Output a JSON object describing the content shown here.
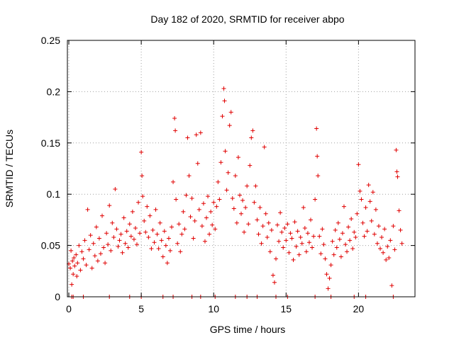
{
  "chart_data": {
    "type": "scatter",
    "title": "Day 182 of 2020, SRMTID for receiver abpo",
    "xlabel": "GPS time / hours",
    "ylabel": "SRMTID / TECUs",
    "xlim": [
      -0.1,
      23.9
    ],
    "ylim": [
      0,
      0.25
    ],
    "x_ticks": [
      0,
      5,
      10,
      15,
      20
    ],
    "x_tick_labels": [
      "0",
      "5",
      "10",
      "15",
      "20"
    ],
    "y_ticks": [
      0,
      0.05,
      0.1,
      0.15,
      0.2,
      0.25
    ],
    "y_tick_labels": [
      "0",
      "0.05",
      "0.1",
      "0.15",
      "0.2",
      "0.25"
    ],
    "grid": true,
    "marker": "+",
    "series": [
      {
        "name": "SRMTID",
        "color": "#e00000",
        "points": [
          [
            0.0,
            0.032
          ],
          [
            0.1,
            0.028
          ],
          [
            0.15,
            0.045
          ],
          [
            0.2,
            0.012
          ],
          [
            0.25,
            0.035
          ],
          [
            0.3,
            0.022
          ],
          [
            0.35,
            0.038
          ],
          [
            0.4,
            0.03
          ],
          [
            0.5,
            0.041
          ],
          [
            0.55,
            0.02
          ],
          [
            0.6,
            0.033
          ],
          [
            0.7,
            0.05
          ],
          [
            0.8,
            0.026
          ],
          [
            0.9,
            0.044
          ],
          [
            1.0,
            0.037
          ],
          [
            1.1,
            0.055
          ],
          [
            1.2,
            0.031
          ],
          [
            1.3,
            0.085
          ],
          [
            1.4,
            0.046
          ],
          [
            1.5,
            0.06
          ],
          [
            1.6,
            0.028
          ],
          [
            1.7,
            0.052
          ],
          [
            1.8,
            0.04
          ],
          [
            1.9,
            0.068
          ],
          [
            2.0,
            0.035
          ],
          [
            2.1,
            0.057
          ],
          [
            2.2,
            0.042
          ],
          [
            2.3,
            0.079
          ],
          [
            2.4,
            0.048
          ],
          [
            2.5,
            0.033
          ],
          [
            2.6,
            0.062
          ],
          [
            2.7,
            0.051
          ],
          [
            2.8,
            0.089
          ],
          [
            2.9,
            0.045
          ],
          [
            3.0,
            0.072
          ],
          [
            3.1,
            0.058
          ],
          [
            3.2,
            0.105
          ],
          [
            3.3,
            0.066
          ],
          [
            3.4,
            0.049
          ],
          [
            3.5,
            0.055
          ],
          [
            3.6,
            0.061
          ],
          [
            3.7,
            0.043
          ],
          [
            3.8,
            0.077
          ],
          [
            3.9,
            0.052
          ],
          [
            4.0,
            0.064
          ],
          [
            4.1,
            0.048
          ],
          [
            4.2,
            0.071
          ],
          [
            4.3,
            0.059
          ],
          [
            4.4,
            0.083
          ],
          [
            4.5,
            0.056
          ],
          [
            4.6,
            0.067
          ],
          [
            4.7,
            0.051
          ],
          [
            4.8,
            0.092
          ],
          [
            4.9,
            0.062
          ],
          [
            5.0,
            0.141
          ],
          [
            5.05,
            0.118
          ],
          [
            5.1,
            0.098
          ],
          [
            5.2,
            0.074
          ],
          [
            5.3,
            0.063
          ],
          [
            5.4,
            0.088
          ],
          [
            5.5,
            0.058
          ],
          [
            5.6,
            0.079
          ],
          [
            5.7,
            0.047
          ],
          [
            5.8,
            0.065
          ],
          [
            5.9,
            0.053
          ],
          [
            6.0,
            0.085
          ],
          [
            6.1,
            0.061
          ],
          [
            6.2,
            0.047
          ],
          [
            6.3,
            0.072
          ],
          [
            6.4,
            0.055
          ],
          [
            6.5,
            0.039
          ],
          [
            6.6,
            0.064
          ],
          [
            6.7,
            0.05
          ],
          [
            6.8,
            0.033
          ],
          [
            6.9,
            0.057
          ],
          [
            7.0,
            0.045
          ],
          [
            7.1,
            0.068
          ],
          [
            7.2,
            0.112
          ],
          [
            7.3,
            0.174
          ],
          [
            7.35,
            0.162
          ],
          [
            7.4,
            0.095
          ],
          [
            7.5,
            0.052
          ],
          [
            7.6,
            0.071
          ],
          [
            7.7,
            0.044
          ],
          [
            7.8,
            0.061
          ],
          [
            7.9,
            0.083
          ],
          [
            8.0,
            0.066
          ],
          [
            8.1,
            0.099
          ],
          [
            8.2,
            0.155
          ],
          [
            8.3,
            0.118
          ],
          [
            8.4,
            0.078
          ],
          [
            8.5,
            0.096
          ],
          [
            8.6,
            0.057
          ],
          [
            8.7,
            0.074
          ],
          [
            8.8,
            0.158
          ],
          [
            8.9,
            0.13
          ],
          [
            9.0,
            0.085
          ],
          [
            9.1,
            0.16
          ],
          [
            9.2,
            0.069
          ],
          [
            9.3,
            0.091
          ],
          [
            9.4,
            0.054
          ],
          [
            9.5,
            0.077
          ],
          [
            9.6,
            0.098
          ],
          [
            9.7,
            0.061
          ],
          [
            9.8,
            0.083
          ],
          [
            9.9,
            0.07
          ],
          [
            10.0,
            0.092
          ],
          [
            10.1,
            0.066
          ],
          [
            10.2,
            0.088
          ],
          [
            10.3,
            0.112
          ],
          [
            10.4,
            0.095
          ],
          [
            10.5,
            0.131
          ],
          [
            10.6,
            0.176
          ],
          [
            10.7,
            0.203
          ],
          [
            10.75,
            0.191
          ],
          [
            10.8,
            0.142
          ],
          [
            10.9,
            0.104
          ],
          [
            11.0,
            0.121
          ],
          [
            11.1,
            0.167
          ],
          [
            11.2,
            0.18
          ],
          [
            11.3,
            0.096
          ],
          [
            11.4,
            0.086
          ],
          [
            11.5,
            0.118
          ],
          [
            11.6,
            0.072
          ],
          [
            11.7,
            0.136
          ],
          [
            11.8,
            0.099
          ],
          [
            11.9,
            0.081
          ],
          [
            12.0,
            0.094
          ],
          [
            12.1,
            0.063
          ],
          [
            12.2,
            0.087
          ],
          [
            12.3,
            0.108
          ],
          [
            12.4,
            0.071
          ],
          [
            12.5,
            0.128
          ],
          [
            12.6,
            0.155
          ],
          [
            12.7,
            0.162
          ],
          [
            12.8,
            0.092
          ],
          [
            12.9,
            0.108
          ],
          [
            13.0,
            0.075
          ],
          [
            13.1,
            0.061
          ],
          [
            13.2,
            0.087
          ],
          [
            13.3,
            0.052
          ],
          [
            13.4,
            0.069
          ],
          [
            13.5,
            0.146
          ],
          [
            13.6,
            0.081
          ],
          [
            13.7,
            0.058
          ],
          [
            13.8,
            0.072
          ],
          [
            13.9,
            0.044
          ],
          [
            14.0,
            0.065
          ],
          [
            14.1,
            0.021
          ],
          [
            14.2,
            0.014
          ],
          [
            14.3,
            0.037
          ],
          [
            14.4,
            0.07
          ],
          [
            14.5,
            0.054
          ],
          [
            14.6,
            0.082
          ],
          [
            14.7,
            0.063
          ],
          [
            14.8,
            0.048
          ],
          [
            14.9,
            0.067
          ],
          [
            15.0,
            0.055
          ],
          [
            15.1,
            0.071
          ],
          [
            15.2,
            0.043
          ],
          [
            15.3,
            0.062
          ],
          [
            15.4,
            0.057
          ],
          [
            15.5,
            0.036
          ],
          [
            15.6,
            0.073
          ],
          [
            15.7,
            0.049
          ],
          [
            15.8,
            0.064
          ],
          [
            15.9,
            0.041
          ],
          [
            16.0,
            0.058
          ],
          [
            16.1,
            0.052
          ],
          [
            16.2,
            0.087
          ],
          [
            16.3,
            0.067
          ],
          [
            16.4,
            0.044
          ],
          [
            16.5,
            0.062
          ],
          [
            16.6,
            0.053
          ],
          [
            16.7,
            0.075
          ],
          [
            16.8,
            0.048
          ],
          [
            16.9,
            0.059
          ],
          [
            17.0,
            0.095
          ],
          [
            17.1,
            0.164
          ],
          [
            17.15,
            0.137
          ],
          [
            17.2,
            0.118
          ],
          [
            17.3,
            0.059
          ],
          [
            17.4,
            0.042
          ],
          [
            17.5,
            0.066
          ],
          [
            17.6,
            0.051
          ],
          [
            17.7,
            0.037
          ],
          [
            17.8,
            0.022
          ],
          [
            17.9,
            0.008
          ],
          [
            18.0,
            0.018
          ],
          [
            18.1,
            0.031
          ],
          [
            18.2,
            0.054
          ],
          [
            18.3,
            0.041
          ],
          [
            18.4,
            0.065
          ],
          [
            18.5,
            0.048
          ],
          [
            18.6,
            0.072
          ],
          [
            18.7,
            0.056
          ],
          [
            18.8,
            0.039
          ],
          [
            18.9,
            0.062
          ],
          [
            19.0,
            0.088
          ],
          [
            19.1,
            0.051
          ],
          [
            19.2,
            0.044
          ],
          [
            19.3,
            0.068
          ],
          [
            19.4,
            0.055
          ],
          [
            19.5,
            0.076
          ],
          [
            19.6,
            0.047
          ],
          [
            19.7,
            0.063
          ],
          [
            19.8,
            0.058
          ],
          [
            19.9,
            0.081
          ],
          [
            20.0,
            0.129
          ],
          [
            20.1,
            0.103
          ],
          [
            20.2,
            0.095
          ],
          [
            20.3,
            0.072
          ],
          [
            20.4,
            0.059
          ],
          [
            20.5,
            0.087
          ],
          [
            20.6,
            0.064
          ],
          [
            20.7,
            0.109
          ],
          [
            20.8,
            0.093
          ],
          [
            20.9,
            0.074
          ],
          [
            21.0,
            0.102
          ],
          [
            21.1,
            0.061
          ],
          [
            21.2,
            0.085
          ],
          [
            21.3,
            0.052
          ],
          [
            21.4,
            0.069
          ],
          [
            21.5,
            0.047
          ],
          [
            21.6,
            0.058
          ],
          [
            21.7,
            0.043
          ],
          [
            21.8,
            0.066
          ],
          [
            21.9,
            0.036
          ],
          [
            22.0,
            0.049
          ],
          [
            22.1,
            0.038
          ],
          [
            22.2,
            0.055
          ],
          [
            22.3,
            0.011
          ],
          [
            22.4,
            0.069
          ],
          [
            22.5,
            0.046
          ],
          [
            22.6,
            0.143
          ],
          [
            22.65,
            0.122
          ],
          [
            22.7,
            0.117
          ],
          [
            22.8,
            0.084
          ],
          [
            22.9,
            0.065
          ],
          [
            23.0,
            0.052
          ]
        ],
        "zero_points": [
          0.2,
          0.3,
          1.0,
          2.8,
          4.2,
          5.0,
          6.5,
          7.2,
          8.5,
          9.1,
          10.1,
          11.5,
          12.3,
          13.0,
          14.3,
          15.1,
          17.0,
          18.1,
          19.7,
          20.5,
          22.4
        ]
      }
    ]
  }
}
